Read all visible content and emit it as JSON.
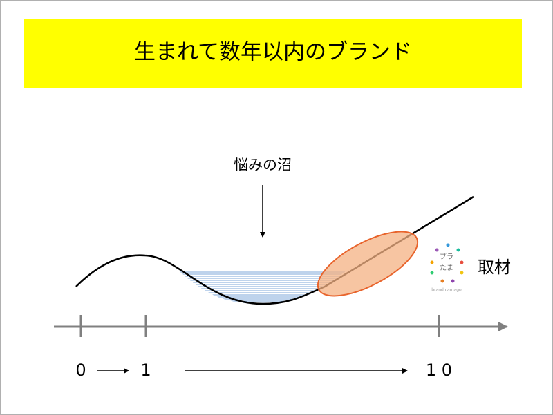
{
  "header": {
    "title": "生まれて数年以内のブランド"
  },
  "annotation": "悩みの沼",
  "side_label": "取材",
  "logo": {
    "line1": "ブラ",
    "line2": "たま",
    "caption": "brand camago"
  },
  "axis_labels": [
    "0",
    "1",
    "1 0"
  ]
}
